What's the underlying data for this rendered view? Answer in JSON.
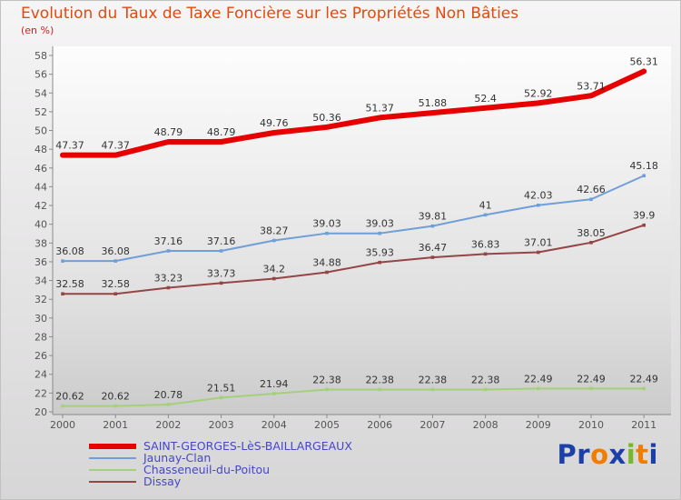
{
  "title": "Evolution du Taux de Taxe Foncière sur les Propriétés Non Bâties",
  "subtitle": "(en %)",
  "chart_data": {
    "type": "line",
    "x": [
      2000,
      2001,
      2002,
      2003,
      2004,
      2005,
      2006,
      2007,
      2008,
      2009,
      2010,
      2011
    ],
    "ylim": [
      20,
      58
    ],
    "ytick_step": 2,
    "grid": false,
    "legend_position": "bottom-left",
    "series": [
      {
        "name": "SAINT-GEORGES-LèS-BAILLARGEAUX",
        "color": "#e60000",
        "line_width": 6,
        "values": [
          47.37,
          47.37,
          48.79,
          48.79,
          49.76,
          50.36,
          51.37,
          51.88,
          52.4,
          52.92,
          53.71,
          56.31
        ]
      },
      {
        "name": "Jaunay-Clan",
        "color": "#6f9fd8",
        "line_width": 2,
        "values": [
          36.08,
          36.08,
          37.16,
          37.16,
          38.27,
          39.03,
          39.03,
          39.81,
          41,
          42.03,
          42.66,
          45.18
        ]
      },
      {
        "name": "Chasseneuil-du-Poitou",
        "color": "#a4d178",
        "line_width": 2,
        "values": [
          20.62,
          20.62,
          20.78,
          21.51,
          21.94,
          22.38,
          22.38,
          22.38,
          22.38,
          22.49,
          22.49,
          22.49
        ]
      },
      {
        "name": "Dissay",
        "color": "#954545",
        "line_width": 2,
        "values": [
          32.58,
          32.58,
          33.23,
          33.73,
          34.2,
          34.88,
          35.93,
          36.47,
          36.83,
          37.01,
          38.05,
          39.9
        ]
      }
    ]
  },
  "colors": {
    "title": "#e2490f",
    "subtitle": "#cc2222",
    "axis": "#8a8a8a",
    "tick_text": "#555555",
    "point_label": "#333333",
    "legend_text": "#4646c8"
  },
  "logo": {
    "text": "Proxiti",
    "letters": [
      {
        "ch": "P",
        "color": "#1c3fa8"
      },
      {
        "ch": "r",
        "color": "#1c3fa8"
      },
      {
        "ch": "o",
        "color": "#f07d00"
      },
      {
        "ch": "x",
        "color": "#1c3fa8"
      },
      {
        "ch": "i",
        "color": "#76b82a"
      },
      {
        "ch": "t",
        "color": "#f07d00"
      },
      {
        "ch": "i",
        "color": "#1c3fa8"
      }
    ]
  }
}
